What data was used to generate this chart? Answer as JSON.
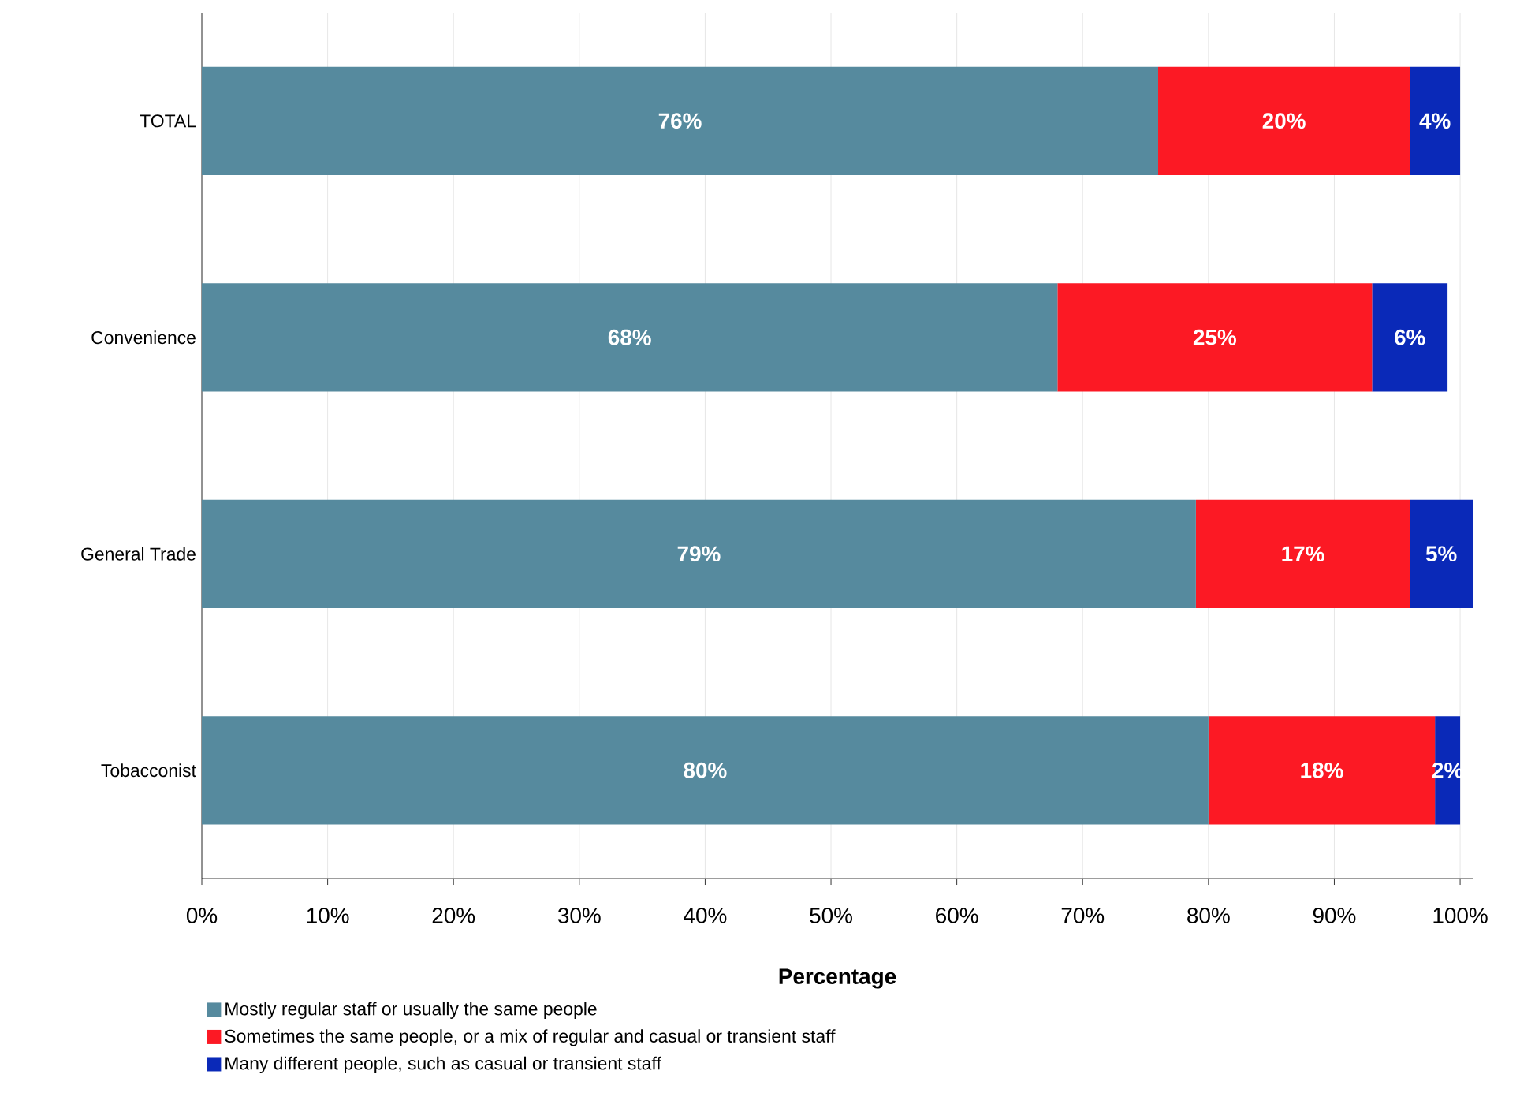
{
  "chart_data": {
    "type": "bar",
    "orientation": "horizontal",
    "stacked": true,
    "xlabel": "Percentage",
    "categories": [
      "TOTAL",
      "Convenience",
      "General Trade",
      "Tobacconist"
    ],
    "series": [
      {
        "name": "Mostly regular staff or usually the same people",
        "color": "#568a9e",
        "values": [
          76,
          68,
          79,
          80
        ],
        "value_labels": [
          "76%",
          "68%",
          "79%",
          "80%"
        ]
      },
      {
        "name": "Sometimes the same people, or a mix of regular and casual or transient staff",
        "color": "#fc1924",
        "values": [
          20,
          25,
          17,
          18
        ],
        "value_labels": [
          "20%",
          "25%",
          "17%",
          "18%"
        ]
      },
      {
        "name": "Many different people, such as casual or transient staff",
        "color": "#0a29b8",
        "values": [
          4,
          6,
          5,
          2
        ],
        "value_labels": [
          "4%",
          "6%",
          "5%",
          "2%"
        ]
      }
    ],
    "xlim": [
      0,
      101
    ],
    "xticks": [
      {
        "value": 0,
        "label": "0%"
      },
      {
        "value": 10,
        "label": "10%"
      },
      {
        "value": 20,
        "label": "20%"
      },
      {
        "value": 30,
        "label": "30%"
      },
      {
        "value": 40,
        "label": "40%"
      },
      {
        "value": 50,
        "label": "50%"
      },
      {
        "value": 60,
        "label": "60%"
      },
      {
        "value": 70,
        "label": "70%"
      },
      {
        "value": 80,
        "label": "80%"
      },
      {
        "value": 90,
        "label": "90%"
      },
      {
        "value": 100,
        "label": "100%"
      }
    ],
    "grid": "x",
    "legend": "bottom"
  }
}
